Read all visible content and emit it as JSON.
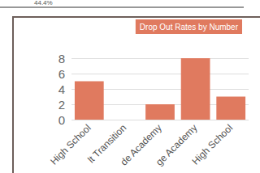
{
  "chart_data": {
    "type": "bar",
    "title": "Drop Out Rates by Number",
    "annotation": "44.4%",
    "categories": [
      "High School",
      "lt Transition",
      "de Academy",
      "ge Academy",
      "High School"
    ],
    "values": [
      5,
      0,
      2,
      8,
      3
    ],
    "color": "#e07a5f",
    "ylim": [
      0,
      8
    ],
    "yticks": [
      0,
      2,
      4,
      6,
      8
    ],
    "grid": true
  }
}
